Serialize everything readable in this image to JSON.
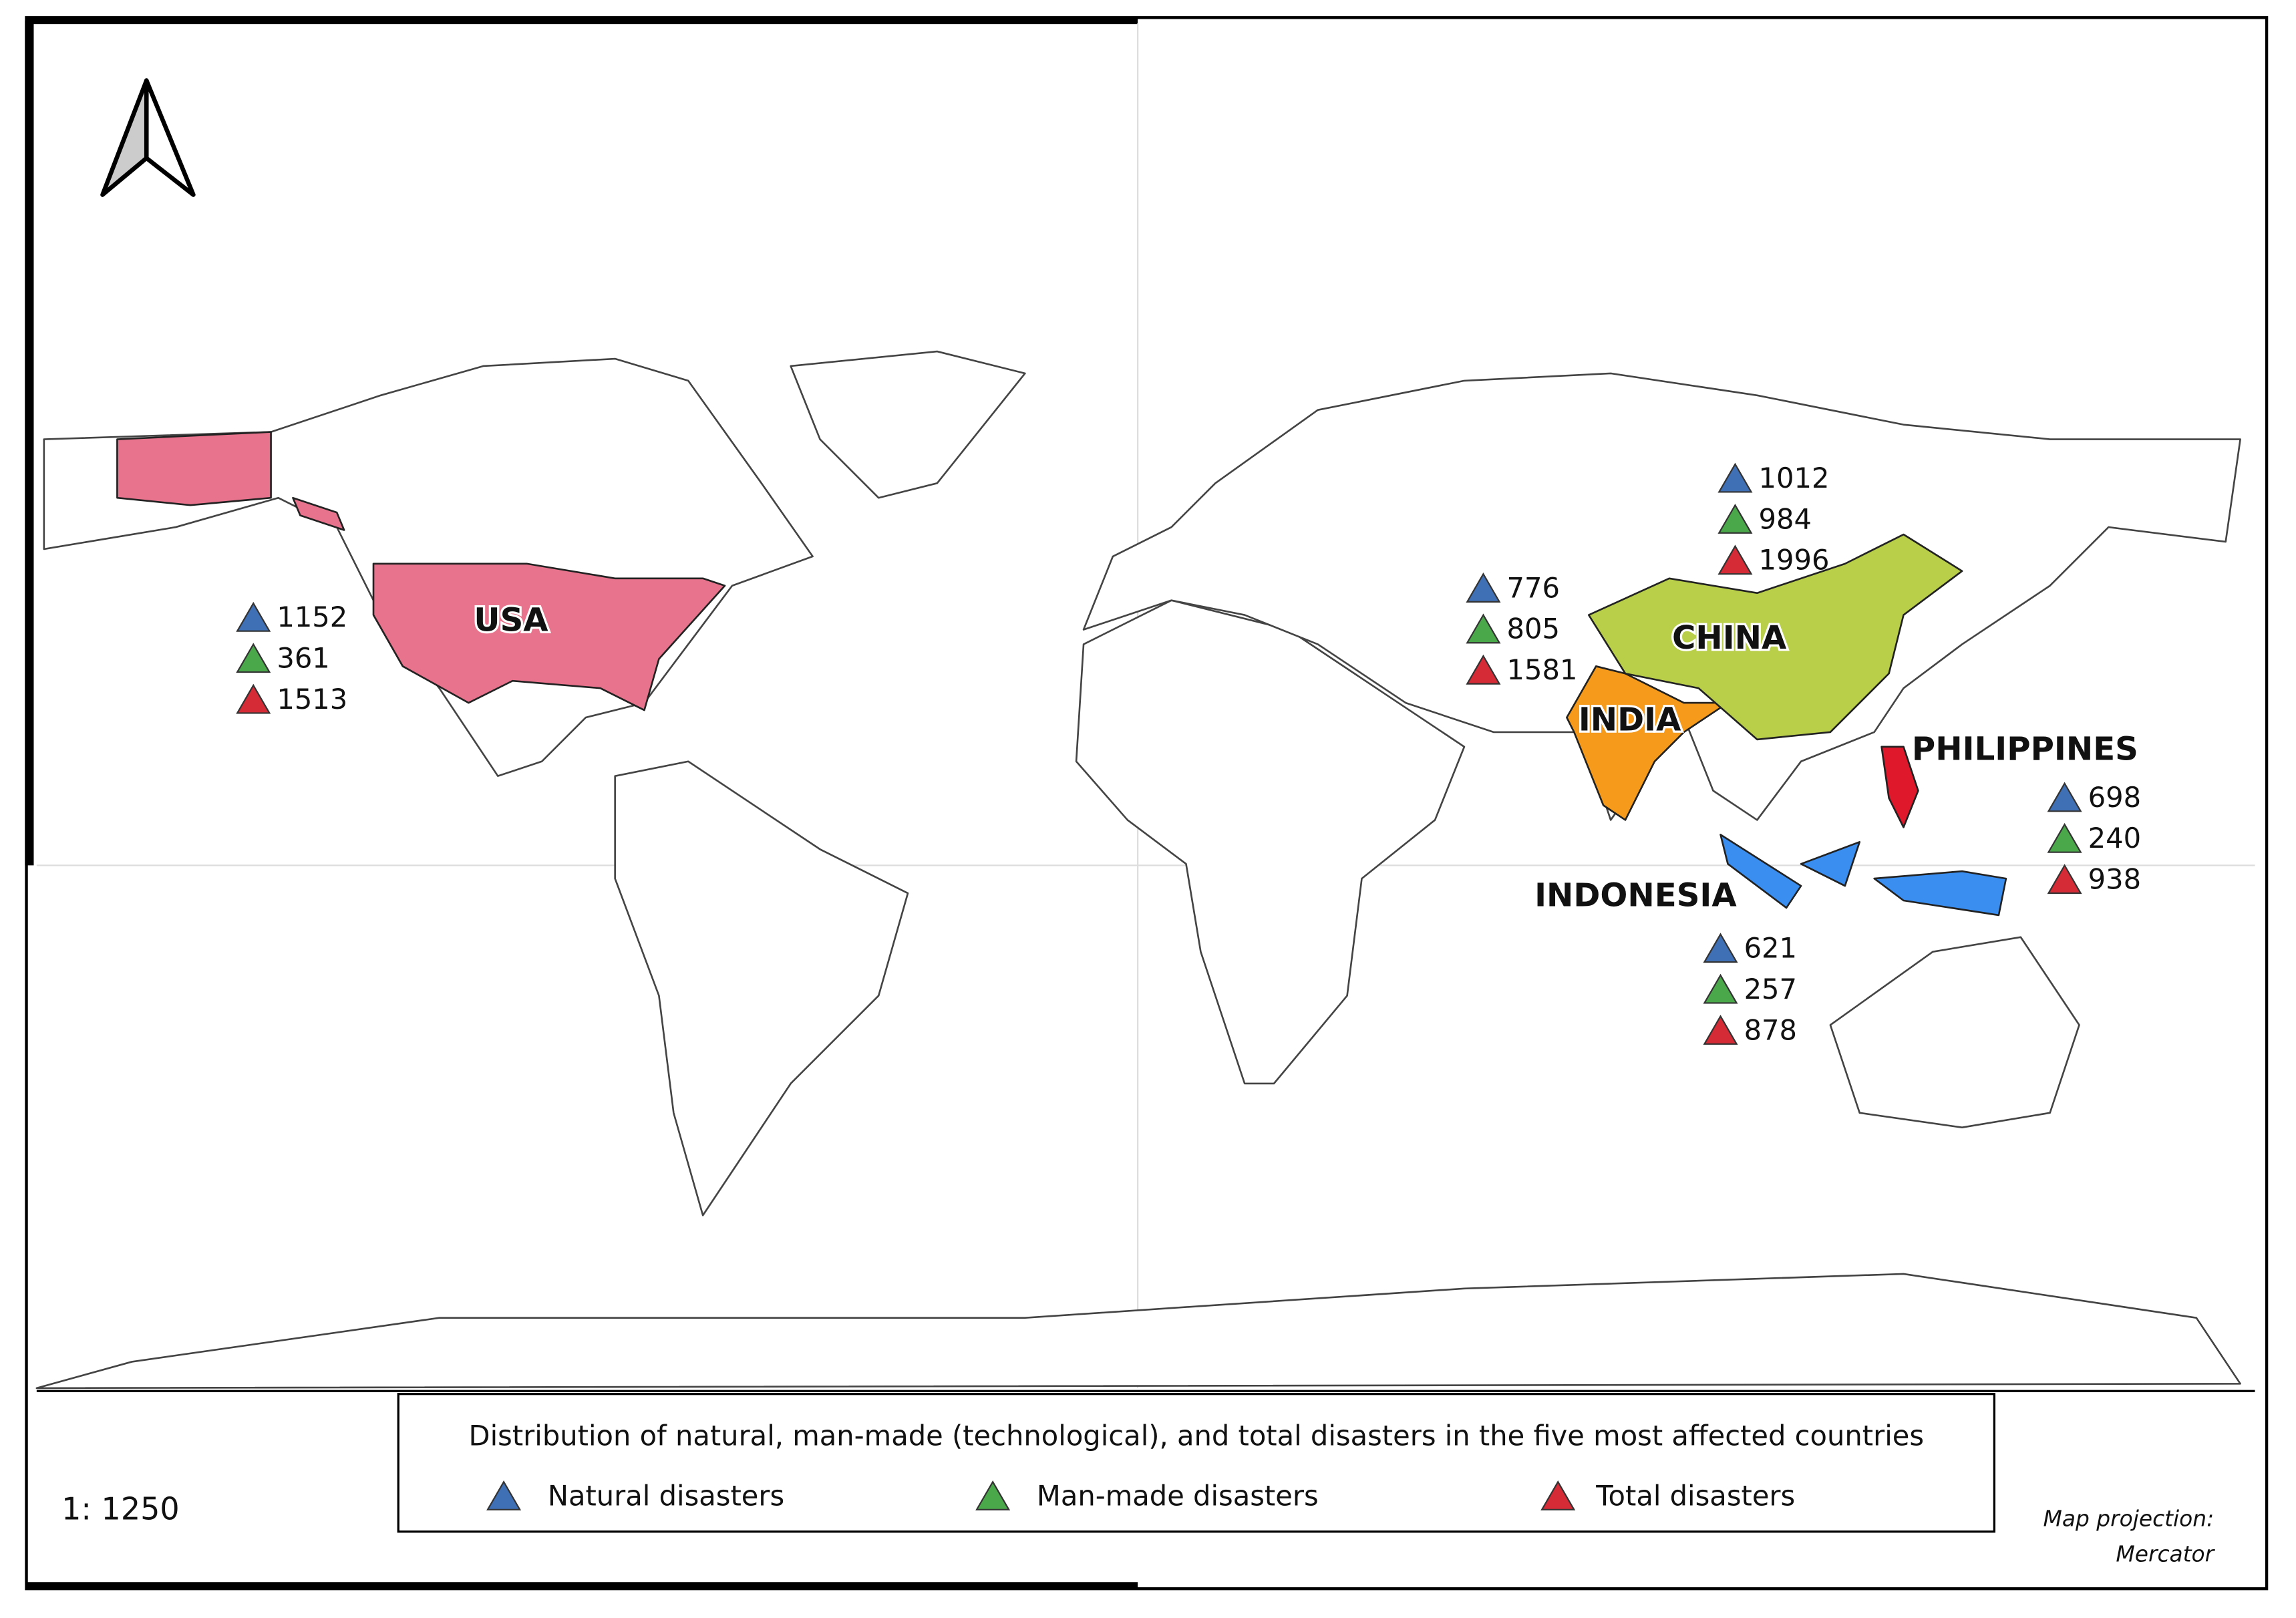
{
  "title": "Distribution of natural, man-made (technological), and total disasters in the five most affected countries",
  "legend": [
    {
      "label": "Natural disasters",
      "color": "#3f6fb5"
    },
    {
      "label": "Man-made disasters",
      "color": "#4aa84a"
    },
    {
      "label": "Total disasters",
      "color": "#d42b36"
    }
  ],
  "scale": "1: 1250",
  "projection": [
    "Map projection:",
    "Mercator"
  ],
  "countries": [
    {
      "name": "USA",
      "color": "#e8738c",
      "natural": 1152,
      "man_made": 361,
      "total": 1513
    },
    {
      "name": "INDIA",
      "color": "#f59a1a",
      "natural": 776,
      "man_made": 805,
      "total": 1581
    },
    {
      "name": "CHINA",
      "color": "#b9cf4a",
      "natural": 1012,
      "man_made": 984,
      "total": 1996
    },
    {
      "name": "PHILIPPINES",
      "color": "#e0182b",
      "natural": 698,
      "man_made": 240,
      "total": 938
    },
    {
      "name": "INDONESIA",
      "color": "#3a8ef0",
      "natural": 621,
      "man_made": 257,
      "total": 878
    }
  ]
}
